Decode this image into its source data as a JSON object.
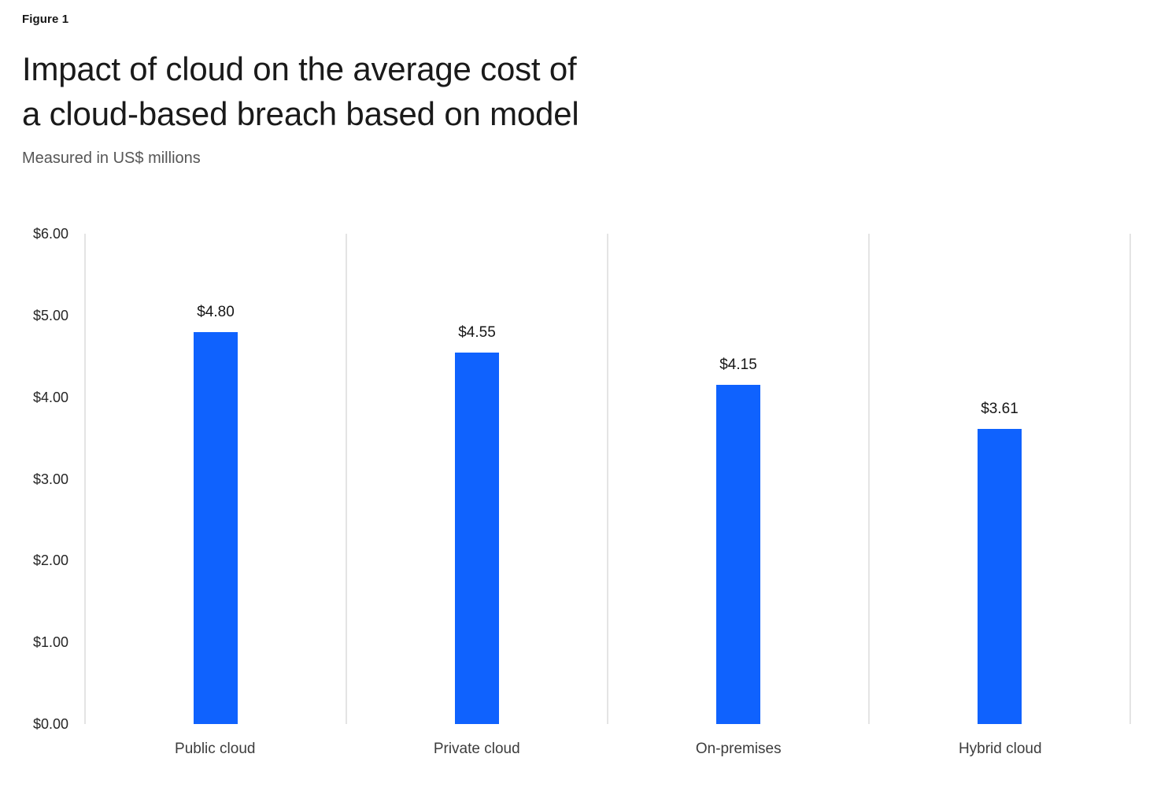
{
  "header": {
    "figure_label": "Figure 1"
  },
  "chart_data": {
    "type": "bar",
    "title": "Impact of cloud on the average cost of\na cloud-based breach based on model",
    "subtitle": "Measured in US$ millions",
    "categories": [
      "Public cloud",
      "Private cloud",
      "On-premises",
      "Hybrid cloud"
    ],
    "values": [
      4.8,
      4.55,
      4.15,
      3.61
    ],
    "value_labels": [
      "$4.80",
      "$4.55",
      "$4.15",
      "$3.61"
    ],
    "xlabel": "",
    "ylabel": "",
    "ylim": [
      0,
      6
    ],
    "ytick_step": 1,
    "yticks": [
      {
        "value": 6,
        "label": "$6.00"
      },
      {
        "value": 5,
        "label": "$5.00"
      },
      {
        "value": 4,
        "label": "$4.00"
      },
      {
        "value": 3,
        "label": "$3.00"
      },
      {
        "value": 2,
        "label": "$2.00"
      },
      {
        "value": 1,
        "label": "$1.00"
      },
      {
        "value": 0,
        "label": "$0.00"
      }
    ],
    "grid": "vertical-column-separators",
    "legend": "none",
    "colors": {
      "bar": "#0f62fe",
      "separator_line": "#e4e4e4",
      "title_text": "#1a1a1a",
      "subtitle_text": "#565656",
      "tick_text": "#262626"
    }
  }
}
